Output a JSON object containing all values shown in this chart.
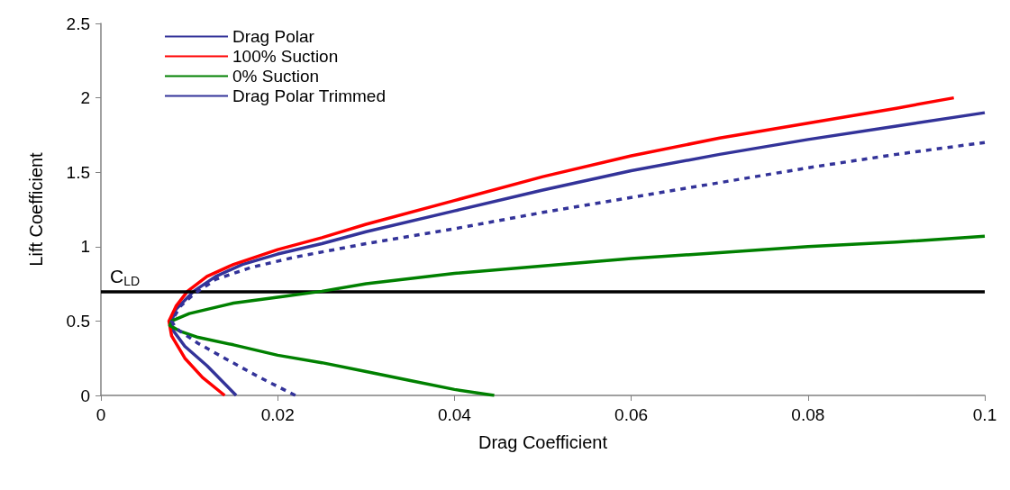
{
  "chart_data": {
    "type": "line",
    "xlabel": "Drag Coefficient",
    "ylabel": "Lift Coefficient",
    "xlim": [
      0,
      0.1
    ],
    "xticks": [
      0,
      0.02,
      0.04,
      0.06,
      0.08,
      0.1
    ],
    "ylim": [
      0,
      2.5
    ],
    "yticks": [
      0,
      0.5,
      1,
      1.5,
      2,
      2.5
    ],
    "grid": false,
    "legend": "top left",
    "marker": "none",
    "ref_lines": [
      {
        "axis": "y",
        "value": 0.7,
        "label": "C$_{LD}$",
        "color": "#000000"
      }
    ],
    "series": [
      {
        "name": "Drag Polar",
        "color": "#333399",
        "line_style": "solid",
        "x": [
          0.0153,
          0.012,
          0.0095,
          0.008,
          0.008,
          0.0085,
          0.0105,
          0.013,
          0.016,
          0.02,
          0.025,
          0.03,
          0.04,
          0.05,
          0.06,
          0.07,
          0.08,
          0.09,
          0.1
        ],
        "values": [
          0,
          0.2,
          0.33,
          0.45,
          0.5,
          0.58,
          0.7,
          0.8,
          0.88,
          0.95,
          1.02,
          1.1,
          1.24,
          1.38,
          1.51,
          1.62,
          1.72,
          1.81,
          1.9
        ]
      },
      {
        "name": "100% Suction",
        "color": "#ff0000",
        "line_style": "solid",
        "x": [
          0.014,
          0.0115,
          0.0095,
          0.008,
          0.0077,
          0.0085,
          0.0098,
          0.012,
          0.015,
          0.02,
          0.025,
          0.03,
          0.04,
          0.05,
          0.06,
          0.07,
          0.08,
          0.09,
          0.0965
        ],
        "values": [
          0,
          0.12,
          0.25,
          0.4,
          0.5,
          0.6,
          0.7,
          0.8,
          0.88,
          0.98,
          1.06,
          1.15,
          1.31,
          1.47,
          1.61,
          1.73,
          1.83,
          1.93,
          2.0
        ]
      },
      {
        "name": "0% Suction",
        "color": "#008000",
        "line_style": "solid",
        "x": [
          0.0445,
          0.04,
          0.035,
          0.03,
          0.025,
          0.02,
          0.015,
          0.011,
          0.009,
          0.0078,
          0.008,
          0.01,
          0.015,
          0.02,
          0.025,
          0.03,
          0.04,
          0.05,
          0.06,
          0.07,
          0.08,
          0.09,
          0.1
        ],
        "values": [
          0,
          0.04,
          0.1,
          0.16,
          0.22,
          0.27,
          0.34,
          0.39,
          0.43,
          0.47,
          0.5,
          0.55,
          0.62,
          0.66,
          0.7,
          0.75,
          0.82,
          0.87,
          0.92,
          0.96,
          1.0,
          1.03,
          1.07
        ]
      },
      {
        "name": "Drag Polar Trimmed",
        "color": "#333399",
        "line_style": "dashed",
        "x": [
          0.022,
          0.018,
          0.014,
          0.011,
          0.0085,
          0.008,
          0.009,
          0.0105,
          0.013,
          0.017,
          0.022,
          0.03,
          0.04,
          0.05,
          0.06,
          0.07,
          0.08,
          0.09,
          0.1
        ],
        "values": [
          0,
          0.12,
          0.25,
          0.35,
          0.45,
          0.5,
          0.6,
          0.68,
          0.78,
          0.86,
          0.93,
          1.02,
          1.12,
          1.23,
          1.33,
          1.43,
          1.53,
          1.62,
          1.7
        ]
      }
    ]
  }
}
